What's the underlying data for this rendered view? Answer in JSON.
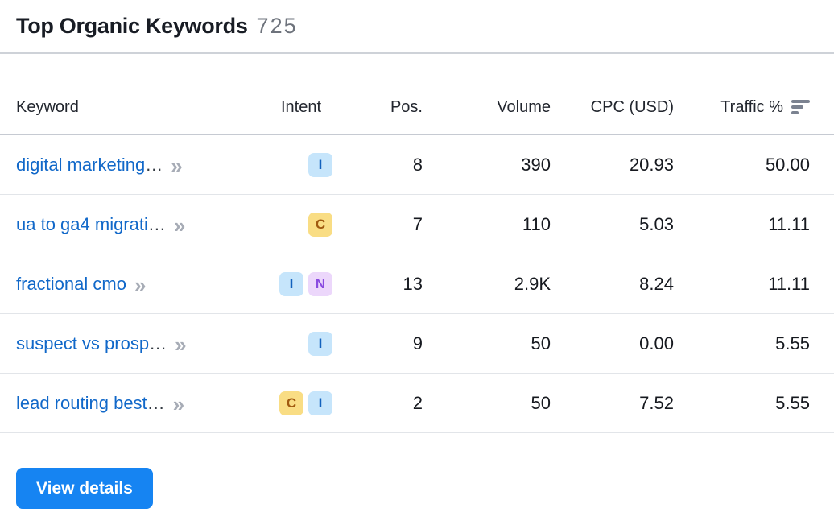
{
  "header": {
    "title": "Top Organic Keywords",
    "count": "725"
  },
  "table": {
    "columns": {
      "keyword": "Keyword",
      "intent": "Intent",
      "pos": "Pos.",
      "volume": "Volume",
      "cpc": "CPC (USD)",
      "traffic": "Traffic %"
    },
    "sort": {
      "column": "traffic",
      "direction": "descending"
    },
    "chevron": "»",
    "rows": [
      {
        "keyword": "digital marketing",
        "ellipsis": " …",
        "intents": [
          "I"
        ],
        "pos": "8",
        "volume": "390",
        "cpc": "20.93",
        "traffic": "50.00"
      },
      {
        "keyword": "ua to ga4 migrati",
        "ellipsis": "…",
        "intents": [
          "C"
        ],
        "pos": "7",
        "volume": "110",
        "cpc": "5.03",
        "traffic": "11.11"
      },
      {
        "keyword": "fractional cmo",
        "ellipsis": "",
        "intents": [
          "I",
          "N"
        ],
        "pos": "13",
        "volume": "2.9K",
        "cpc": "8.24",
        "traffic": "11.11"
      },
      {
        "keyword": "suspect vs prosp",
        "ellipsis": "…",
        "intents": [
          "I"
        ],
        "pos": "9",
        "volume": "50",
        "cpc": "0.00",
        "traffic": "5.55"
      },
      {
        "keyword": "lead routing best",
        "ellipsis": " …",
        "intents": [
          "C",
          "I"
        ],
        "pos": "2",
        "volume": "50",
        "cpc": "7.52",
        "traffic": "5.55"
      }
    ]
  },
  "intent_styles": {
    "I": {
      "bg": "#c6e5fb",
      "fg": "#1261bd"
    },
    "C": {
      "bg": "#f9dd84",
      "fg": "#a05a10"
    },
    "N": {
      "bg": "#ecd7fb",
      "fg": "#8a4be0"
    }
  },
  "colors": {
    "link": "#1168c9",
    "button_bg": "#1684f2",
    "sort_icon": "#7b8290"
  },
  "footer": {
    "view_details_label": "View details"
  }
}
